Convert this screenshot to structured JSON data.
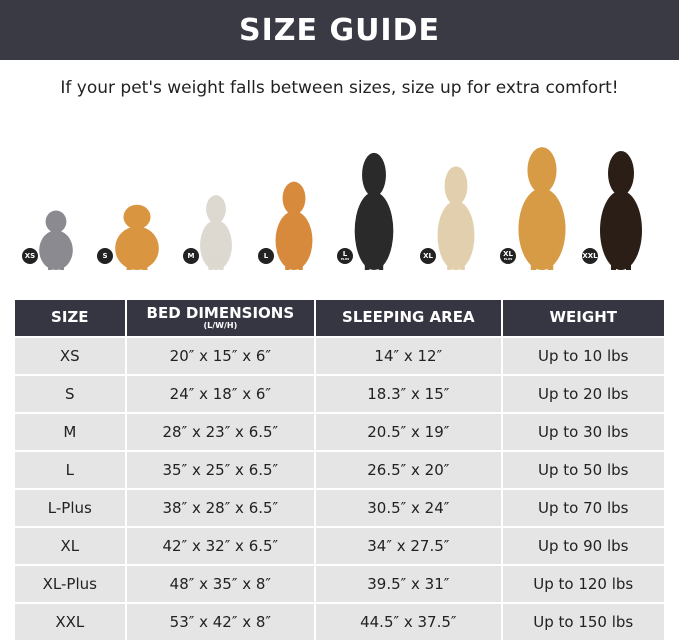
{
  "title": "SIZE GUIDE",
  "subtitle": "If your pet's weight falls between sizes, size up for extra comfort!",
  "pets": [
    {
      "badge": "XS",
      "badge_sub": "",
      "animal": "cat",
      "color": "#8a8a90"
    },
    {
      "badge": "S",
      "badge_sub": "",
      "animal": "pomeranian",
      "color": "#d9953f"
    },
    {
      "badge": "M",
      "badge_sub": "",
      "animal": "french-bulldog",
      "color": "#ddd8d0"
    },
    {
      "badge": "L",
      "badge_sub": "",
      "animal": "shiba-inu",
      "color": "#d88a3c"
    },
    {
      "badge": "L",
      "badge_sub": "PLUS",
      "animal": "border-collie",
      "color": "#2a2a2a"
    },
    {
      "badge": "XL",
      "badge_sub": "",
      "animal": "labrador",
      "color": "#e2cfae"
    },
    {
      "badge": "XL",
      "badge_sub": "PLUS",
      "animal": "golden-retriever",
      "color": "#d79a45"
    },
    {
      "badge": "XXL",
      "badge_sub": "",
      "animal": "doberman",
      "color": "#2b1e16"
    }
  ],
  "table": {
    "headers": [
      {
        "label": "SIZE",
        "sub": ""
      },
      {
        "label": "BED DIMENSIONS",
        "sub": "(L/W/H)"
      },
      {
        "label": "SLEEPING AREA",
        "sub": ""
      },
      {
        "label": "WEIGHT",
        "sub": ""
      }
    ],
    "rows": [
      [
        "XS",
        "20″ x 15″ x 6″",
        "14″ x 12″",
        "Up to 10 lbs"
      ],
      [
        "S",
        "24″ x 18″ x 6″",
        "18.3″ x 15″",
        "Up to 20 lbs"
      ],
      [
        "M",
        "28″ x 23″ x 6.5″",
        "20.5″ x 19″",
        "Up to 30 lbs"
      ],
      [
        "L",
        "35″ x 25″ x 6.5″",
        "26.5″ x 20″",
        "Up to 50 lbs"
      ],
      [
        "L-Plus",
        "38″ x 28″ x 6.5″",
        "30.5″ x 24″",
        "Up to 70 lbs"
      ],
      [
        "XL",
        "42″ x 32″ x 6.5″",
        "34″ x 27.5″",
        "Up to 90 lbs"
      ],
      [
        "XL-Plus",
        "48″ x 35″ x 8″",
        "39.5″ x 31″",
        "Up to 120 lbs"
      ],
      [
        "XXL",
        "53″ x 42″ x 8″",
        "44.5″ x 37.5″",
        "Up to 150 lbs"
      ]
    ]
  }
}
